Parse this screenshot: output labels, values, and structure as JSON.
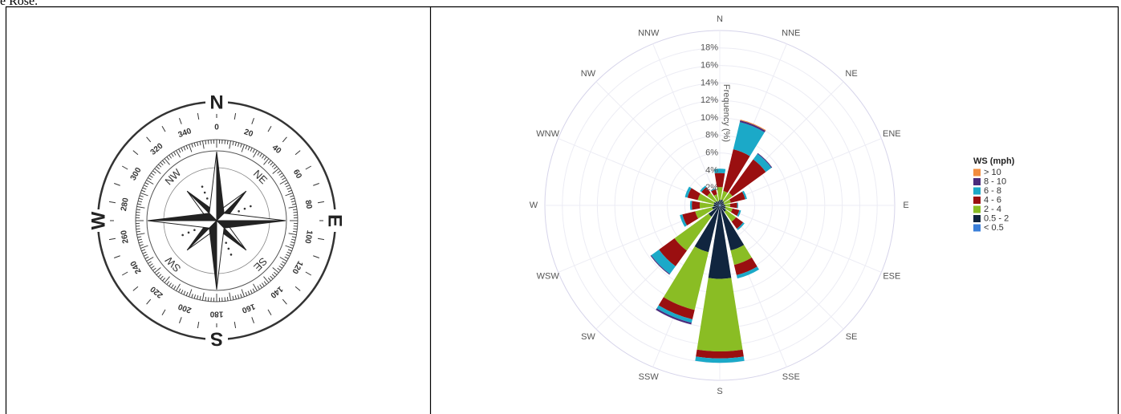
{
  "caption": "e Rose.",
  "compass": {
    "cardinals": [
      "N",
      "E",
      "S",
      "W"
    ],
    "intercardinals": [
      "NE",
      "SE",
      "SW",
      "NW"
    ],
    "degrees": [
      0,
      20,
      40,
      60,
      80,
      100,
      120,
      140,
      160,
      180,
      200,
      220,
      240,
      260,
      280,
      300,
      320,
      340
    ]
  },
  "chart_data": {
    "type": "windrose",
    "categories": [
      "N",
      "NNE",
      "NE",
      "ENE",
      "E",
      "ESE",
      "SE",
      "SSE",
      "S",
      "SSW",
      "SW",
      "WSW",
      "W",
      "WNW",
      "NW",
      "NNW"
    ],
    "radial_axis_title": "Frequency (%)",
    "legend_title": "WS (mph)",
    "ylim": [
      0,
      20
    ],
    "yticks": [
      {
        "value": 2,
        "label": "2%"
      },
      {
        "value": 4,
        "label": "4%"
      },
      {
        "value": 6,
        "label": "6%"
      },
      {
        "value": 8,
        "label": "8%"
      },
      {
        "value": 10,
        "label": "10%"
      },
      {
        "value": 12,
        "label": "12%"
      },
      {
        "value": 14,
        "label": "14%"
      },
      {
        "value": 16,
        "label": "16%"
      },
      {
        "value": 18,
        "label": "18%"
      }
    ],
    "grid": true,
    "series": [
      {
        "name": "< 0.5",
        "color": "#3a7fd9",
        "values": [
          0.1,
          0.1,
          0.1,
          0.1,
          0.1,
          0.1,
          0.1,
          0.1,
          0.1,
          0.1,
          0.1,
          0.1,
          0.1,
          0.1,
          0.1,
          0.1
        ]
      },
      {
        "name": "0.5 - 2",
        "color": "#10253f",
        "values": [
          0.5,
          0.6,
          0.5,
          0.4,
          0.5,
          0.6,
          0.8,
          5.2,
          8.3,
          5.4,
          1.5,
          0.8,
          0.6,
          0.6,
          0.5,
          0.4
        ]
      },
      {
        "name": "2 - 4",
        "color": "#8abd24",
        "values": [
          1.5,
          1.0,
          1.2,
          0.8,
          0.6,
          0.8,
          1.4,
          1.7,
          8.3,
          6.8,
          4.8,
          2.0,
          1.6,
          1.9,
          1.2,
          0.8
        ]
      },
      {
        "name": "4 - 6",
        "color": "#9a0f10",
        "values": [
          1.6,
          4.9,
          4.7,
          1.7,
          0.8,
          0.8,
          1.0,
          1.2,
          0.8,
          1.1,
          2.2,
          1.5,
          0.9,
          1.2,
          0.8,
          0.6
        ]
      },
      {
        "name": "6 - 8",
        "color": "#1ba9c8",
        "values": [
          0.5,
          3.2,
          0.8,
          0.2,
          0.1,
          0.2,
          0.2,
          0.4,
          0.5,
          0.4,
          1.1,
          0.3,
          0.2,
          0.3,
          0.2,
          0.1
        ]
      },
      {
        "name": "8 - 10",
        "color": "#4a2b7c",
        "values": [
          0,
          0.2,
          0.1,
          0,
          0,
          0,
          0,
          0,
          0,
          0.2,
          0.1,
          0,
          0,
          0,
          0,
          0
        ]
      },
      {
        "name": "> 10",
        "color": "#f28c3e",
        "values": [
          0,
          0.1,
          0,
          0,
          0,
          0,
          0,
          0,
          0,
          0,
          0,
          0,
          0,
          0,
          0,
          0
        ]
      }
    ]
  }
}
